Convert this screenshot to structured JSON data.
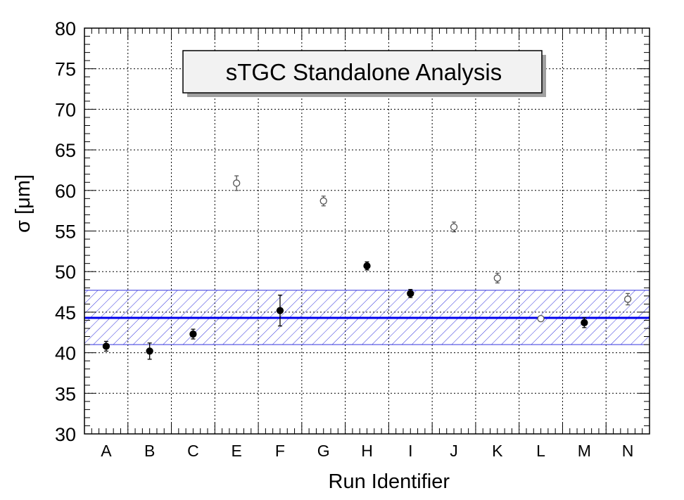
{
  "chart_data": {
    "type": "scatter",
    "title": "sTGC Standalone Analysis",
    "xlabel": "Run Identifier",
    "ylabel": "σ [μm]",
    "ylim": [
      30,
      80
    ],
    "yticks": [
      30,
      35,
      40,
      45,
      50,
      55,
      60,
      65,
      70,
      75,
      80
    ],
    "categories": [
      "A",
      "B",
      "C",
      "E",
      "F",
      "G",
      "H",
      "I",
      "J",
      "K",
      "L",
      "M",
      "N"
    ],
    "grid": true,
    "series": [
      {
        "marker": "filled-circle",
        "color": "#000000",
        "points": [
          {
            "x": "A",
            "y": 40.8,
            "err": 0.6
          },
          {
            "x": "B",
            "y": 40.2,
            "err": 1.0
          },
          {
            "x": "C",
            "y": 42.3,
            "err": 0.6
          },
          {
            "x": "F",
            "y": 45.2,
            "err": 1.9
          },
          {
            "x": "H",
            "y": 50.7,
            "err": 0.5
          },
          {
            "x": "I",
            "y": 47.3,
            "err": 0.5
          },
          {
            "x": "M",
            "y": 43.7,
            "err": 0.6
          }
        ]
      },
      {
        "marker": "open-circle",
        "color": "#555555",
        "points": [
          {
            "x": "E",
            "y": 60.9,
            "err": 0.9
          },
          {
            "x": "G",
            "y": 58.7,
            "err": 0.6
          },
          {
            "x": "J",
            "y": 55.5,
            "err": 0.6
          },
          {
            "x": "K",
            "y": 49.2,
            "err": 0.6
          },
          {
            "x": "L",
            "y": 44.2,
            "err": 0.3
          },
          {
            "x": "N",
            "y": 46.6,
            "err": 0.7
          }
        ]
      }
    ],
    "mean_line": {
      "value": 44.3,
      "color": "#0000ee"
    },
    "band": {
      "low": 41.0,
      "high": 47.7,
      "color": "#3333dd"
    }
  }
}
